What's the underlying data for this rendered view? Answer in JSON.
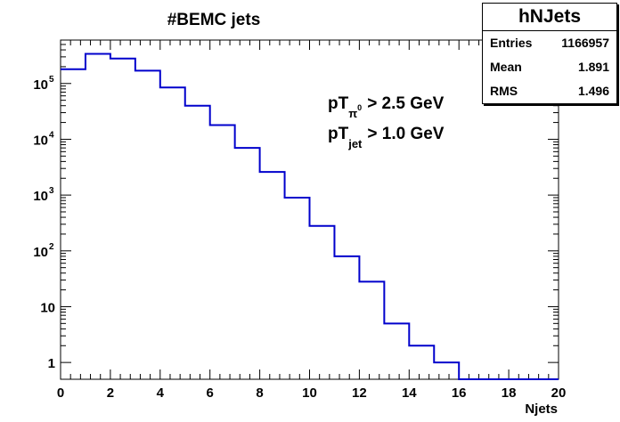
{
  "chart_data": {
    "type": "histogram",
    "title": "#BEMC jets",
    "xlabel": "Njets",
    "ylabel": "",
    "xlim": [
      0,
      20
    ],
    "ylim": [
      0.5,
      600000
    ],
    "log_y": true,
    "line_color": "#0000cc",
    "x_ticks": [
      "0",
      "2",
      "4",
      "6",
      "8",
      "10",
      "12",
      "14",
      "16",
      "18",
      "20"
    ],
    "y_ticks": [
      {
        "value": 1,
        "label": "1",
        "exp": ""
      },
      {
        "value": 10,
        "label": "10",
        "exp": ""
      },
      {
        "value": 100,
        "label": "10",
        "exp": "2"
      },
      {
        "value": 1000,
        "label": "10",
        "exp": "3"
      },
      {
        "value": 10000,
        "label": "10",
        "exp": "4"
      },
      {
        "value": 100000,
        "label": "10",
        "exp": "5"
      }
    ],
    "bin_edges": [
      0,
      1,
      2,
      3,
      4,
      5,
      6,
      7,
      8,
      9,
      10,
      11,
      12,
      13,
      14,
      15,
      16,
      17,
      18,
      19,
      20
    ],
    "values": [
      180000,
      340000,
      280000,
      170000,
      85000,
      40000,
      18000,
      7000,
      2600,
      900,
      280,
      80,
      28,
      5,
      2,
      1,
      0,
      0,
      0,
      0
    ],
    "annotations": [
      {
        "main": "pT",
        "sub": "π",
        "sup": "0",
        "rest": "> 2.5 GeV"
      },
      {
        "main": "pT",
        "sub": "jet",
        "sup": "",
        "rest": "> 1.0 GeV"
      }
    ]
  },
  "stats": {
    "title": "hNJets",
    "rows": [
      {
        "label": "Entries",
        "value": "1166957"
      },
      {
        "label": "Mean",
        "value": "1.891"
      },
      {
        "label": "RMS",
        "value": "1.496"
      }
    ]
  }
}
